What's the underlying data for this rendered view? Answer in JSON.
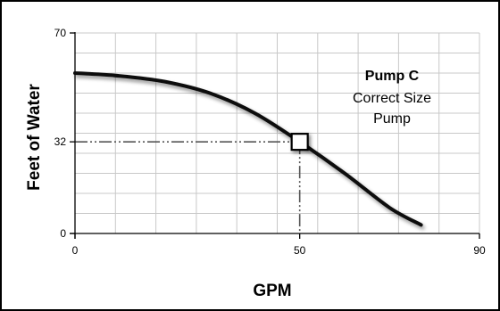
{
  "chart_data": {
    "type": "line",
    "title": "",
    "xlabel": "GPM",
    "ylabel": "Feet of Water",
    "xlim": [
      0,
      90
    ],
    "ylim": [
      0,
      70
    ],
    "x_ticks": [
      0,
      50,
      90
    ],
    "y_ticks": [
      0,
      32,
      70
    ],
    "grid": true,
    "series": [
      {
        "x": [
          0,
          10,
          20,
          30,
          40,
          50,
          60,
          70,
          77
        ],
        "y": [
          56,
          55,
          53,
          49,
          42,
          32,
          21,
          9,
          3
        ]
      }
    ],
    "operating_point": {
      "x": 50,
      "y": 32
    },
    "annotation": {
      "line1": "Pump C",
      "line2": "Correct Size",
      "line3": "Pump"
    },
    "colors": {
      "curve": "#111111",
      "grid": "#c8c8c8",
      "axis": "#000000",
      "guide": "#555555"
    }
  }
}
